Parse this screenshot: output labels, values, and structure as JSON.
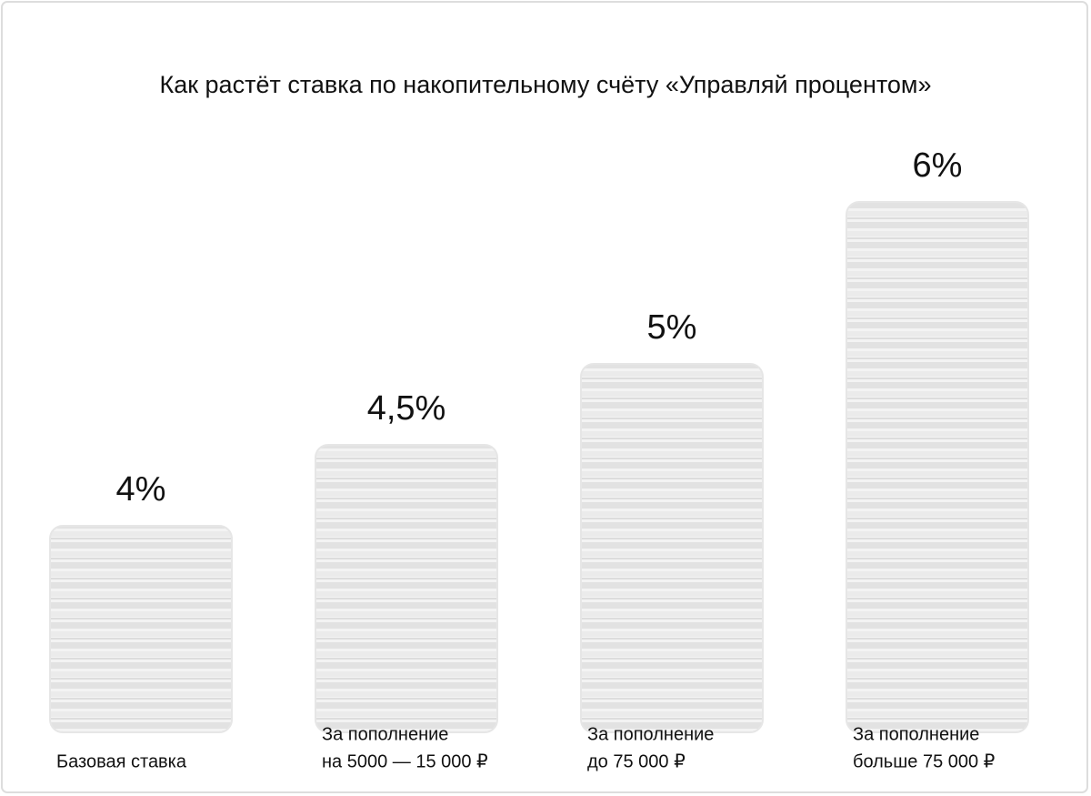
{
  "chart_data": {
    "type": "bar",
    "title": "Как растёт ставка по накопительному счёту «Управляй процентом»",
    "categories": [
      [
        "Базовая ставка"
      ],
      [
        "За пополнение",
        "на 5000 — 15 000 ₽"
      ],
      [
        "За пополнение",
        "до 75 000 ₽"
      ],
      [
        "За пополнение",
        "больше 75 000 ₽"
      ]
    ],
    "values": [
      4,
      4.5,
      5,
      6
    ],
    "value_labels": [
      "4%",
      "4,5%",
      "5%",
      "6%"
    ],
    "color": "#e6e6e6"
  }
}
